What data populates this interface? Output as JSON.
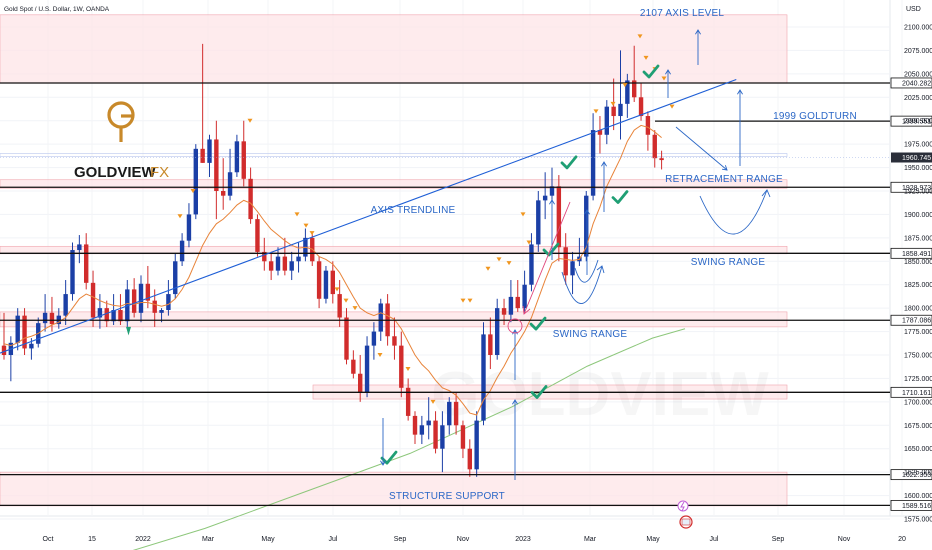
{
  "chart_title": "Gold Spot / U.S. Dollar, 1W, OANDA",
  "currency": "USD",
  "brand": {
    "name": "GOLDVIEW",
    "suffix": "FX",
    "accent": "#c8892a"
  },
  "colors": {
    "up": "#1b3fa6",
    "down": "#d12c2c",
    "ema": "#e8843a",
    "sma": "#8dc77b",
    "line": "#1f5fd6",
    "zone": "#fde4e7",
    "zone_border": "#f0a5ae",
    "anno": "#2b67c6",
    "check": "#1f9f74",
    "arrow_down": "#f0961f"
  },
  "chart_data": {
    "type": "candlestick",
    "y_axis_ticks": [
      "1575.000",
      "1600.000",
      "1625.000",
      "1650.000",
      "1675.000",
      "1700.000",
      "1725.000",
      "1750.000",
      "1775.000",
      "1800.000",
      "1825.000",
      "1850.000",
      "1875.000",
      "1900.000",
      "1925.000",
      "1950.000",
      "1975.000",
      "2000.000",
      "2025.000",
      "2050.000",
      "2075.000",
      "2100.000"
    ],
    "ylim": [
      1570,
      2117
    ],
    "x_axis_ticks": [
      "Oct",
      "15",
      "2022",
      "Mar",
      "May",
      "Jul",
      "Sep",
      "Nov",
      "2023",
      "Mar",
      "May",
      "Jul",
      "Sep",
      "Nov",
      "20"
    ],
    "levels": [
      {
        "price": 2040.282,
        "label": "2040.282"
      },
      {
        "price": 1999.551,
        "label": "1999.551"
      },
      {
        "price": 1928.973,
        "label": "1928.973"
      },
      {
        "price": 1858.491,
        "label": "1858.491"
      },
      {
        "price": 1787.086,
        "label": "1787.086"
      },
      {
        "price": 1710.161,
        "label": "1710.161"
      },
      {
        "price": 1622.353,
        "label": "1622.353"
      },
      {
        "price": 1589.516,
        "label": "1589.516"
      }
    ],
    "current_price": {
      "price": 1960.745,
      "label": "1960.745"
    },
    "zones": [
      {
        "top": 2113,
        "bottom": 2040
      },
      {
        "top": 1937,
        "bottom": 1928
      },
      {
        "top": 1866,
        "bottom": 1858
      },
      {
        "top": 1796,
        "bottom": 1780
      },
      {
        "top": 1718,
        "bottom": 1703
      },
      {
        "top": 1625,
        "bottom": 1589
      }
    ],
    "annotations": [
      {
        "text": "2107 AXIS LEVEL"
      },
      {
        "text": "1999 GOLDTURN"
      },
      {
        "text": "RETRACEMENT RANGE"
      },
      {
        "text": "AXIS TRENDLINE"
      },
      {
        "text": "SWING RANGE"
      },
      {
        "text": "SWING RANGE"
      },
      {
        "text": "STRUCTURE SUPPORT"
      }
    ],
    "candles": [
      [
        1760,
        1795,
        1745,
        1750
      ],
      [
        1750,
        1770,
        1722,
        1763
      ],
      [
        1763,
        1800,
        1755,
        1792
      ],
      [
        1792,
        1800,
        1750,
        1757
      ],
      [
        1757,
        1768,
        1745,
        1762
      ],
      [
        1762,
        1790,
        1758,
        1784
      ],
      [
        1784,
        1815,
        1775,
        1795
      ],
      [
        1795,
        1812,
        1775,
        1783
      ],
      [
        1783,
        1800,
        1778,
        1792
      ],
      [
        1792,
        1830,
        1782,
        1815
      ],
      [
        1815,
        1870,
        1808,
        1862
      ],
      [
        1862,
        1878,
        1848,
        1868
      ],
      [
        1868,
        1880,
        1820,
        1827
      ],
      [
        1827,
        1840,
        1780,
        1790
      ],
      [
        1790,
        1815,
        1778,
        1800
      ],
      [
        1800,
        1808,
        1780,
        1786
      ],
      [
        1786,
        1815,
        1782,
        1798
      ],
      [
        1798,
        1815,
        1782,
        1786
      ],
      [
        1786,
        1830,
        1780,
        1820
      ],
      [
        1820,
        1832,
        1790,
        1795
      ],
      [
        1795,
        1835,
        1785,
        1826
      ],
      [
        1826,
        1845,
        1800,
        1808
      ],
      [
        1808,
        1820,
        1780,
        1795
      ],
      [
        1795,
        1800,
        1785,
        1798
      ],
      [
        1798,
        1830,
        1792,
        1815
      ],
      [
        1815,
        1858,
        1810,
        1850
      ],
      [
        1850,
        1880,
        1845,
        1872
      ],
      [
        1872,
        1912,
        1865,
        1900
      ],
      [
        1900,
        1975,
        1895,
        1970
      ],
      [
        1970,
        2082,
        1955,
        1955
      ],
      [
        1955,
        1985,
        1940,
        1980
      ],
      [
        1980,
        2000,
        1895,
        1925
      ],
      [
        1925,
        1960,
        1905,
        1920
      ],
      [
        1920,
        1970,
        1915,
        1945
      ],
      [
        1945,
        1985,
        1940,
        1978
      ],
      [
        1978,
        2000,
        1930,
        1938
      ],
      [
        1938,
        1950,
        1890,
        1895
      ],
      [
        1895,
        1900,
        1855,
        1860
      ],
      [
        1860,
        1875,
        1840,
        1850
      ],
      [
        1850,
        1860,
        1830,
        1840
      ],
      [
        1840,
        1865,
        1835,
        1855
      ],
      [
        1855,
        1875,
        1835,
        1840
      ],
      [
        1840,
        1860,
        1830,
        1850
      ],
      [
        1850,
        1870,
        1838,
        1855
      ],
      [
        1855,
        1885,
        1850,
        1875
      ],
      [
        1875,
        1880,
        1845,
        1850
      ],
      [
        1850,
        1855,
        1800,
        1810
      ],
      [
        1810,
        1845,
        1805,
        1840
      ],
      [
        1840,
        1850,
        1805,
        1815
      ],
      [
        1815,
        1830,
        1780,
        1790
      ],
      [
        1790,
        1800,
        1740,
        1745
      ],
      [
        1745,
        1755,
        1725,
        1730
      ],
      [
        1730,
        1750,
        1700,
        1710
      ],
      [
        1710,
        1770,
        1705,
        1760
      ],
      [
        1760,
        1785,
        1745,
        1775
      ],
      [
        1775,
        1810,
        1765,
        1805
      ],
      [
        1805,
        1815,
        1760,
        1770
      ],
      [
        1770,
        1790,
        1745,
        1760
      ],
      [
        1760,
        1775,
        1705,
        1715
      ],
      [
        1715,
        1725,
        1680,
        1685
      ],
      [
        1685,
        1690,
        1655,
        1665
      ],
      [
        1665,
        1685,
        1655,
        1675
      ],
      [
        1675,
        1705,
        1660,
        1680
      ],
      [
        1680,
        1690,
        1645,
        1650
      ],
      [
        1650,
        1690,
        1625,
        1675
      ],
      [
        1675,
        1705,
        1665,
        1700
      ],
      [
        1700,
        1710,
        1665,
        1675
      ],
      [
        1675,
        1680,
        1640,
        1650
      ],
      [
        1650,
        1660,
        1620,
        1628
      ],
      [
        1628,
        1690,
        1620,
        1680
      ],
      [
        1680,
        1785,
        1675,
        1772
      ],
      [
        1772,
        1790,
        1735,
        1750
      ],
      [
        1750,
        1810,
        1745,
        1800
      ],
      [
        1800,
        1810,
        1782,
        1793
      ],
      [
        1793,
        1830,
        1785,
        1812
      ],
      [
        1812,
        1830,
        1796,
        1800
      ],
      [
        1800,
        1840,
        1795,
        1825
      ],
      [
        1825,
        1880,
        1818,
        1868
      ],
      [
        1868,
        1925,
        1860,
        1915
      ],
      [
        1915,
        1945,
        1895,
        1920
      ],
      [
        1920,
        1950,
        1915,
        1930
      ],
      [
        1930,
        1942,
        1850,
        1865
      ],
      [
        1865,
        1880,
        1825,
        1835
      ],
      [
        1835,
        1860,
        1815,
        1850
      ],
      [
        1850,
        1875,
        1845,
        1855
      ],
      [
        1855,
        1925,
        1850,
        1920
      ],
      [
        1920,
        2008,
        1915,
        1990
      ],
      [
        1990,
        2005,
        1965,
        1985
      ],
      [
        1985,
        2022,
        1975,
        2015
      ],
      [
        2015,
        2045,
        1990,
        2005
      ],
      [
        2005,
        2075,
        1980,
        2018
      ],
      [
        2018,
        2050,
        2003,
        2043
      ],
      [
        2043,
        2080,
        2020,
        2025
      ],
      [
        2025,
        2040,
        2000,
        2005
      ],
      [
        2005,
        2010,
        1968,
        1985
      ],
      [
        1985,
        1990,
        1950,
        1960
      ],
      [
        1960,
        1968,
        1948,
        1958
      ]
    ],
    "ema": [
      1762,
      1760,
      1763,
      1768,
      1770,
      1773,
      1778,
      1782,
      1785,
      1790,
      1800,
      1810,
      1815,
      1812,
      1808,
      1805,
      1803,
      1802,
      1805,
      1804,
      1806,
      1806,
      1804,
      1802,
      1804,
      1810,
      1820,
      1833,
      1850,
      1867,
      1880,
      1890,
      1895,
      1902,
      1910,
      1915,
      1912,
      1903,
      1893,
      1884,
      1878,
      1872,
      1867,
      1864,
      1865,
      1863,
      1855,
      1852,
      1847,
      1838,
      1825,
      1812,
      1800,
      1795,
      1792,
      1795,
      1792,
      1788,
      1778,
      1764,
      1750,
      1740,
      1733,
      1723,
      1715,
      1712,
      1707,
      1698,
      1688,
      1686,
      1702,
      1712,
      1726,
      1738,
      1752,
      1763,
      1775,
      1790,
      1810,
      1830,
      1848,
      1853,
      1852,
      1851,
      1852,
      1865,
      1890,
      1908,
      1930,
      1945,
      1960,
      1978,
      1990,
      1995,
      1993,
      1988,
      1982
    ],
    "sma": [
      [
        0.115,
        1533
      ],
      [
        0.22,
        1565
      ],
      [
        0.33,
        1605
      ],
      [
        0.44,
        1645
      ],
      [
        0.55,
        1695
      ],
      [
        0.63,
        1738
      ],
      [
        0.7,
        1768
      ],
      [
        0.735,
        1778
      ]
    ],
    "trendline": [
      [
        0.0,
        1752
      ],
      [
        0.79,
        2044
      ]
    ]
  },
  "pattern_arrows_text": [
    "↗",
    "↘"
  ]
}
